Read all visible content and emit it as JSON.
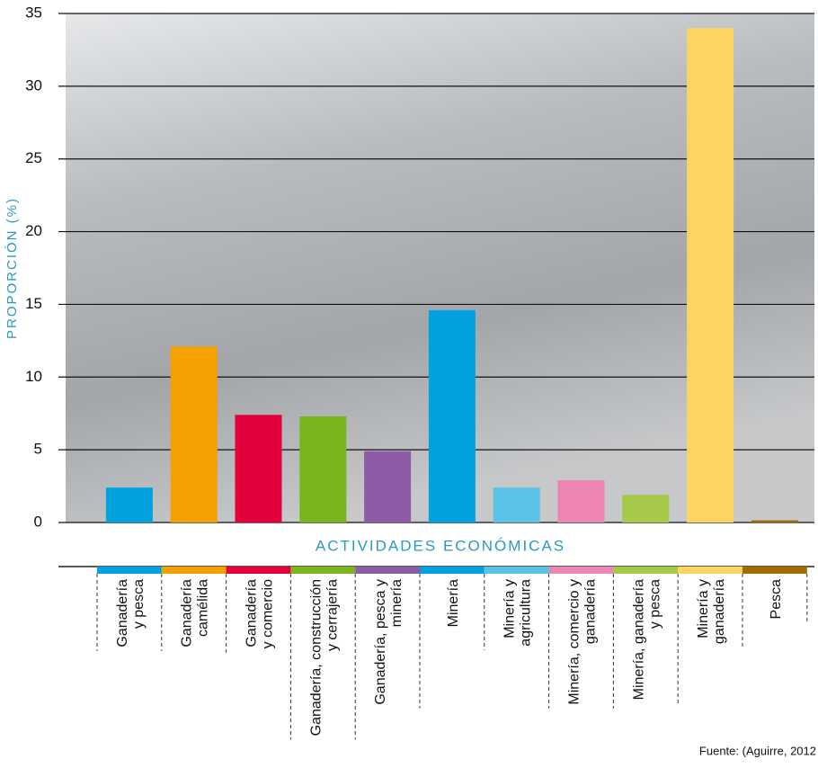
{
  "chart_data": {
    "type": "bar",
    "y_label": "PROPORCIÓN (%)",
    "x_label": "ACTIVIDADES ECONÓMICAS",
    "source": "Fuente: (Aguirre, 2012",
    "categories": [
      "Ganadería\ny pesca",
      "Ganadería\ncamélida",
      "Ganadería\ny comercio",
      "Ganadería, construcción\ny cerrajería",
      "Ganadería, pesca y\nminería",
      "Minería",
      "Minería y\nagricultura",
      "Minería, comercio y\nganadería",
      "Minería, ganadería\ny pesca",
      "Minería y\nganadería",
      "Pesca"
    ],
    "values": [
      2.4,
      12.1,
      7.4,
      7.3,
      4.9,
      14.6,
      2.4,
      2.9,
      1.9,
      34,
      0.15
    ],
    "colors": [
      "#00a3e0",
      "#f5a000",
      "#e4003a",
      "#7ab51d",
      "#8e5ba6",
      "#00a3e0",
      "#5bc2e7",
      "#ee86b4",
      "#a6c94a",
      "#fcd462",
      "#a36a00"
    ],
    "ylim": [
      0,
      35
    ],
    "yticks": [
      0,
      5,
      10,
      15,
      20,
      25,
      30,
      35
    ],
    "grid": true
  }
}
